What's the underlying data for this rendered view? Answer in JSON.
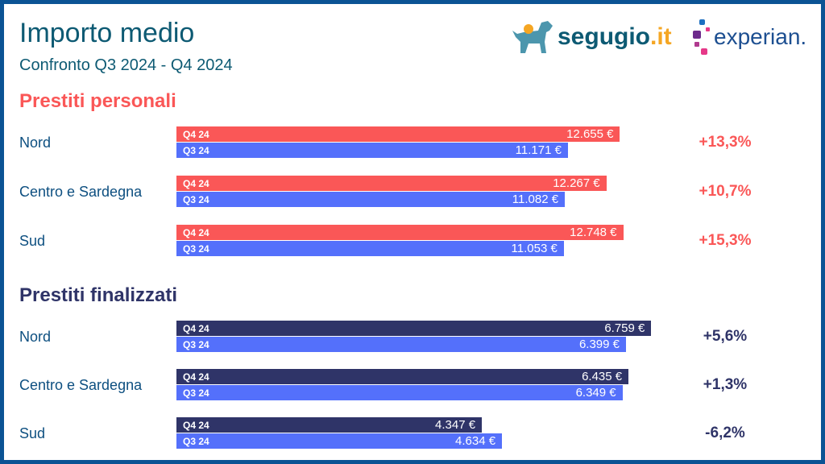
{
  "title": "Importo medio",
  "subtitle": "Confronto Q3 2024 - Q4 2024",
  "logos": {
    "segugio": "segugio",
    "segugio_tld": ".it",
    "experian": "experian."
  },
  "colors": {
    "personal_q4": "#fa5757",
    "finalized_q4": "#2f3468",
    "q3": "#5470fb",
    "personal_pct": "#fa5757",
    "finalized_pct": "#2f3468"
  },
  "chart_data": [
    {
      "type": "bar",
      "title": "Prestiti personali",
      "categories": [
        "Nord",
        "Centro e Sardegna",
        "Sud"
      ],
      "series": [
        {
          "name": "Q4 24",
          "values": [
            12655,
            12267,
            12748
          ],
          "labels": [
            "12.655 €",
            "12.267 €",
            "12.748 €"
          ]
        },
        {
          "name": "Q3 24",
          "values": [
            11171,
            11082,
            11053
          ],
          "labels": [
            "11.171 €",
            "11.082 €",
            "11.053 €"
          ]
        }
      ],
      "changes": [
        "+13,3%",
        "+10,7%",
        "+15,3%"
      ]
    },
    {
      "type": "bar",
      "title": "Prestiti finalizzati",
      "categories": [
        "Nord",
        "Centro e Sardegna",
        "Sud"
      ],
      "series": [
        {
          "name": "Q4 24",
          "values": [
            6759,
            6435,
            4347
          ],
          "labels": [
            "6.759 €",
            "6.435 €",
            "4.347 €"
          ]
        },
        {
          "name": "Q3 24",
          "values": [
            6399,
            6349,
            4634
          ],
          "labels": [
            "6.399 €",
            "6.349 €",
            "4.634 €"
          ]
        }
      ],
      "changes": [
        "+5,6%",
        "+1,3%",
        "-6,2%"
      ]
    }
  ]
}
